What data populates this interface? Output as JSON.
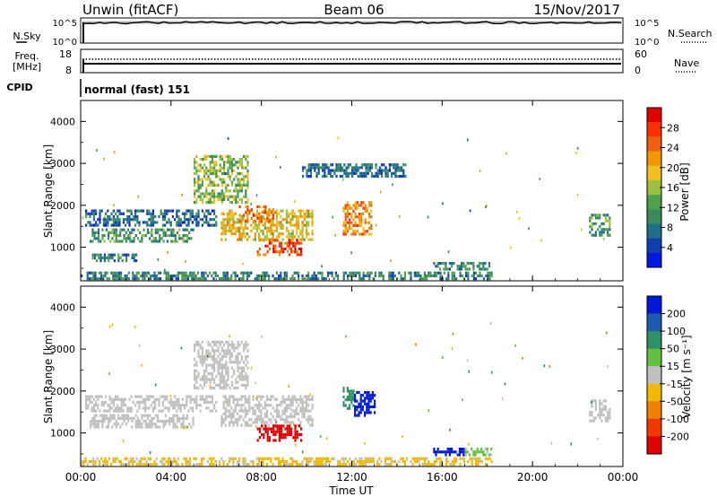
{
  "header": {
    "station": "Unwin (fitACF)",
    "beam": "Beam 06",
    "date": "15/Nov/2017"
  },
  "top_panels": {
    "nsky_label": "N.Sky",
    "nsearch_label": "N.Search",
    "nsky_ticks": [
      "10^5",
      "10^0"
    ],
    "nsearch_ticks": [
      "10^5",
      "10^0"
    ],
    "freq_label_1": "Freq.",
    "freq_label_2": "[MHz]",
    "freq_ticks": [
      "18",
      "8"
    ],
    "nave_label": "Nave",
    "nave_ticks": [
      "60",
      "0"
    ],
    "cpid_label": "CPID",
    "cpid_text": "normal (fast) 151"
  },
  "power_colorbar": {
    "label": "Power [dB]",
    "ticks": [
      "28",
      "24",
      "20",
      "16",
      "12",
      "8",
      "4"
    ],
    "colors": [
      "#e00000",
      "#ff3000",
      "#f06010",
      "#f09800",
      "#f0c020",
      "#9cc040",
      "#50a050",
      "#3a8a5a",
      "#1f6e8a",
      "#1040b0",
      "#0018e0"
    ]
  },
  "velocity_colorbar": {
    "label": "Velocity [m s⁻¹]",
    "ticks": [
      "200",
      "100",
      "50",
      "15",
      "-15",
      "-50",
      "-100",
      "-200"
    ],
    "colors": [
      "#0018d8",
      "#1c5cb0",
      "#2f8f66",
      "#64c040",
      "#c0c0bc",
      "#f0b800",
      "#f08000",
      "#f03800",
      "#e00000"
    ]
  },
  "chart_data": [
    {
      "type": "heatmap",
      "name": "power",
      "xlabel": "Time UT",
      "ylabel": "Slant Range [km]",
      "x_ticks": [
        "00:00",
        "04:00",
        "08:00",
        "12:00",
        "16:00",
        "20:00",
        "00:00"
      ],
      "y_ticks": [
        1000,
        2000,
        3000,
        4000
      ],
      "xlim_hours": [
        0,
        24
      ],
      "ylim_km": [
        200,
        4500
      ],
      "colorbar": "Power [dB]",
      "regions": [
        {
          "t": [
            0.2,
            6.0
          ],
          "r": [
            1550,
            1900
          ],
          "db": 6
        },
        {
          "t": [
            0.4,
            5.0
          ],
          "r": [
            1150,
            1450
          ],
          "db": 10
        },
        {
          "t": [
            0.0,
            18.2
          ],
          "r": [
            220,
            420
          ],
          "db": 8
        },
        {
          "t": [
            0.5,
            2.5
          ],
          "r": [
            650,
            850
          ],
          "db": 8
        },
        {
          "t": [
            5.0,
            7.4
          ],
          "r": [
            2100,
            3200
          ],
          "db": 14
        },
        {
          "t": [
            6.2,
            10.3
          ],
          "r": [
            1200,
            1900
          ],
          "db": 18
        },
        {
          "t": [
            7.8,
            9.8
          ],
          "r": [
            800,
            1200
          ],
          "db": 26
        },
        {
          "t": [
            7.0,
            8.6
          ],
          "r": [
            1600,
            2000
          ],
          "db": 24
        },
        {
          "t": [
            11.6,
            12.9
          ],
          "r": [
            1300,
            2100
          ],
          "db": 22
        },
        {
          "t": [
            9.8,
            14.4
          ],
          "r": [
            2700,
            3000
          ],
          "db": 6
        },
        {
          "t": [
            15.6,
            18.2
          ],
          "r": [
            450,
            650
          ],
          "db": 8
        },
        {
          "t": [
            22.5,
            23.4
          ],
          "r": [
            1300,
            1800
          ],
          "db": 10
        }
      ]
    },
    {
      "type": "heatmap",
      "name": "velocity",
      "xlabel": "Time UT",
      "ylabel": "Slant Range [km]",
      "x_ticks": [
        "00:00",
        "04:00",
        "08:00",
        "12:00",
        "16:00",
        "20:00",
        "00:00"
      ],
      "y_ticks": [
        1000,
        2000,
        3000,
        4000
      ],
      "xlim_hours": [
        0,
        24
      ],
      "ylim_km": [
        200,
        4500
      ],
      "colorbar": "Velocity [m s⁻¹]",
      "regions": [
        {
          "t": [
            0.2,
            6.0
          ],
          "r": [
            1550,
            1900
          ],
          "v": 0
        },
        {
          "t": [
            0.4,
            5.0
          ],
          "r": [
            1150,
            1450
          ],
          "v": 0
        },
        {
          "t": [
            0.0,
            18.2
          ],
          "r": [
            220,
            420
          ],
          "v": -20
        },
        {
          "t": [
            5.0,
            7.4
          ],
          "r": [
            2100,
            3200
          ],
          "v": 0
        },
        {
          "t": [
            6.2,
            10.3
          ],
          "r": [
            1200,
            1900
          ],
          "v": 0
        },
        {
          "t": [
            7.8,
            9.8
          ],
          "r": [
            800,
            1200
          ],
          "v": -250
        },
        {
          "t": [
            11.6,
            12.1
          ],
          "r": [
            1600,
            2100
          ],
          "v": 60
        },
        {
          "t": [
            12.1,
            13.0
          ],
          "r": [
            1400,
            2000
          ],
          "v": 250
        },
        {
          "t": [
            15.6,
            17.0
          ],
          "r": [
            450,
            650
          ],
          "v": 220
        },
        {
          "t": [
            17.0,
            18.2
          ],
          "r": [
            450,
            650
          ],
          "v": 20
        },
        {
          "t": [
            22.5,
            23.4
          ],
          "r": [
            1300,
            1800
          ],
          "v": 0
        }
      ]
    }
  ]
}
